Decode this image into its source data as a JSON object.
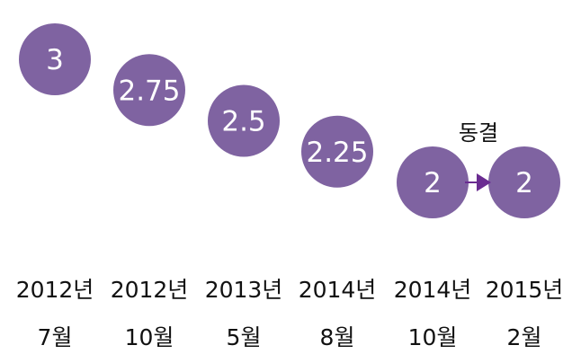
{
  "chart_data": {
    "type": "scatter",
    "title": "",
    "xlabel": "",
    "ylabel": "",
    "categories": [
      [
        "2012년",
        "7월"
      ],
      [
        "2012년",
        "10월"
      ],
      [
        "2013년",
        "5월"
      ],
      [
        "2014년",
        "8월"
      ],
      [
        "2014년",
        "10월"
      ],
      [
        "2015년",
        "2월"
      ]
    ],
    "values": [
      3,
      2.75,
      2.5,
      2.25,
      2,
      2
    ],
    "value_labels": [
      "3",
      "2.75",
      "2.5",
      "2.25",
      "2",
      "2"
    ],
    "ylim": [
      2,
      3
    ],
    "grid": false,
    "legend": "none",
    "annotation": {
      "text": "동결",
      "from_index": 4,
      "to_index": 5
    },
    "colors": {
      "bubble": "#7f63a1",
      "bubble_text": "#ffffff",
      "arrow": "#6a2c91",
      "text": "#111111"
    }
  }
}
